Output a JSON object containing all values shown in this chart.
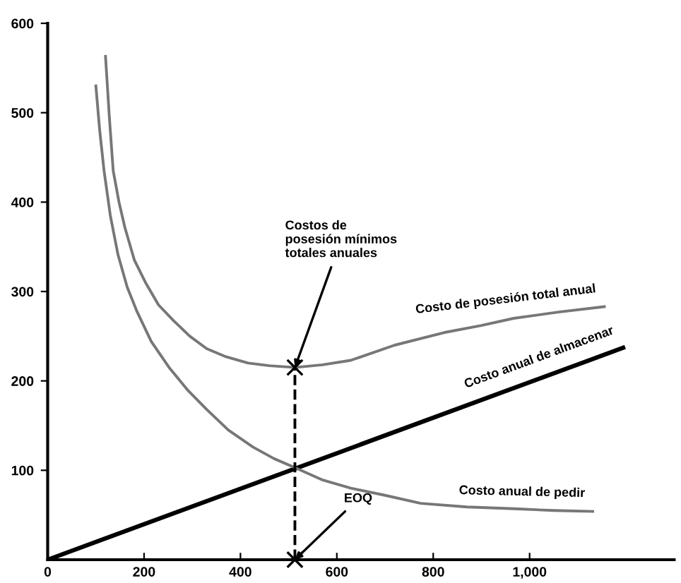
{
  "chart_data": {
    "type": "line",
    "xlim": [
      0,
      1300
    ],
    "ylim": [
      0,
      600
    ],
    "xticks": [
      0,
      200,
      400,
      600,
      800,
      {
        "value": 1000,
        "label": "1,000"
      }
    ],
    "yticks": [
      100,
      200,
      300,
      400,
      500,
      600
    ],
    "grid": false,
    "legend": false,
    "series": [
      {
        "name": "Costo de posesión total anual",
        "color": "#777777",
        "x": [
          120,
          128,
          136,
          148,
          160,
          180,
          204,
          230,
          262,
          295,
          330,
          370,
          416,
          460,
          513,
          570,
          629,
          720,
          822,
          900,
          967,
          1060,
          1155
        ],
        "values": [
          563,
          495,
          435,
          400,
          372,
          335,
          309,
          285,
          267,
          250,
          236,
          227,
          220,
          217,
          215,
          218,
          223,
          240,
          254,
          262,
          270,
          277,
          283
        ]
      },
      {
        "name": "Costo anual de almacenar",
        "color": "#000000",
        "x": [
          0,
          1194
        ],
        "values": [
          0,
          237
        ]
      },
      {
        "name": "Costo anual de pedir",
        "color": "#777777",
        "x": [
          100,
          108,
          117,
          130,
          146,
          165,
          185,
          215,
          252,
          290,
          330,
          375,
          426,
          470,
          513,
          571,
          629,
          700,
          774,
          870,
          967,
          1050,
          1131
        ],
        "values": [
          530,
          480,
          435,
          385,
          341,
          305,
          278,
          244,
          215,
          190,
          168,
          145,
          126,
          113,
          103,
          89,
          80,
          72,
          63,
          59,
          57,
          55,
          54
        ]
      },
      {
        "color": "#000000",
        "x": [
          513,
          513
        ],
        "values": [
          0,
          215
        ],
        "line_style": "dashed"
      },
      {
        "type": "scatter",
        "marker": "cross",
        "color": "#000000",
        "x": [
          513,
          513
        ],
        "values": [
          215,
          0
        ]
      }
    ],
    "annotations": [
      {
        "text": "Costos de\nposesión mínimos\ntotales anuales",
        "x": 513,
        "y": 215
      },
      {
        "text": "EOQ",
        "x": 513,
        "y": 0
      }
    ]
  }
}
